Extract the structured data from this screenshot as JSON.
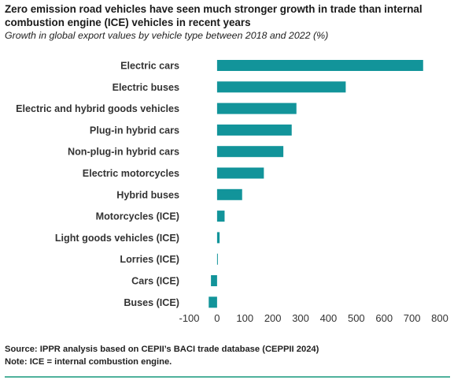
{
  "header": {
    "title": "Zero emission road vehicles have seen much stronger growth in trade than internal combustion engine (ICE) vehicles in recent years",
    "subtitle": "Growth in global export values by vehicle type between 2018 and 2022 (%)"
  },
  "footer": {
    "source": "Source: IPPR analysis based on CEPII’s BACI trade database (CEPPII 2024)",
    "note": "Note: ICE = internal combustion engine."
  },
  "colors": {
    "bar": "#12949a",
    "divider": "#4fb29c"
  },
  "chart_data": {
    "type": "bar",
    "orientation": "horizontal",
    "title": "Zero emission road vehicles have seen much stronger growth in trade than internal combustion engine (ICE) vehicles in recent years",
    "subtitle": "Growth in global export values by vehicle type between 2018 and 2022 (%)",
    "categories": [
      "Electric cars",
      "Electric buses",
      "Electric and hybrid goods vehicles",
      "Plug-in hybrid cars",
      "Non-plug-in hybrid cars",
      "Electric motorcycles",
      "Hybrid buses",
      "Motorcycles (ICE)",
      "Light goods vehicles (ICE)",
      "Lorries (ICE)",
      "Cars (ICE)",
      "Buses (ICE)"
    ],
    "values": [
      740,
      462,
      285,
      268,
      238,
      168,
      90,
      27,
      9,
      2,
      -22,
      -30
    ],
    "xlim": [
      -100,
      800
    ],
    "xticks": [
      -100,
      0,
      100,
      200,
      300,
      400,
      500,
      600,
      700,
      800
    ],
    "grid": false,
    "legend": "none"
  }
}
